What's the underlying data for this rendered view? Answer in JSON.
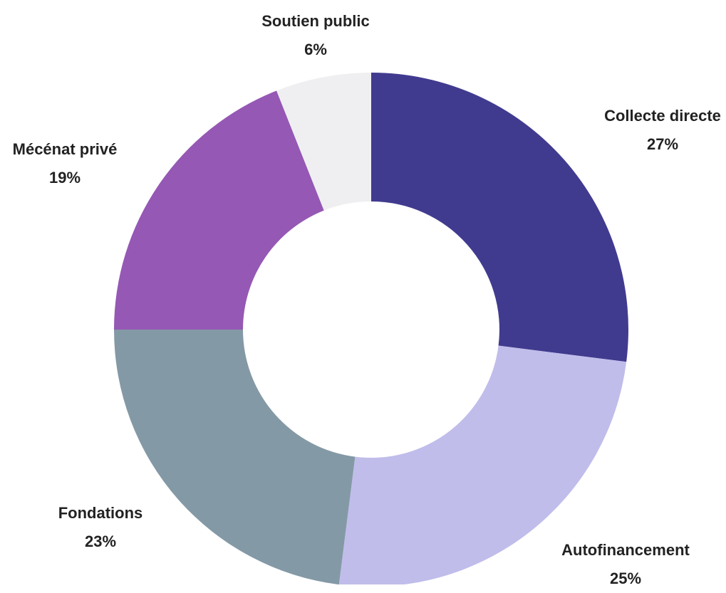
{
  "chart_data": {
    "type": "pie",
    "variant": "donut",
    "title": "",
    "slices": [
      {
        "label": "Collecte directe",
        "value": 27,
        "display": "27%",
        "color": "#413b8f"
      },
      {
        "label": "Autofinancement",
        "value": 25,
        "display": "25%",
        "color": "#c0bdeb"
      },
      {
        "label": "Fondations",
        "value": 23,
        "display": "23%",
        "color": "#8499a6"
      },
      {
        "label": "Mécénat privé",
        "value": 19,
        "display": "19%",
        "color": "#9558b4"
      },
      {
        "label": "Soutien public",
        "value": 6,
        "display": "6%",
        "color": "#efeff1"
      }
    ],
    "legend": "none",
    "labels": "outside"
  }
}
